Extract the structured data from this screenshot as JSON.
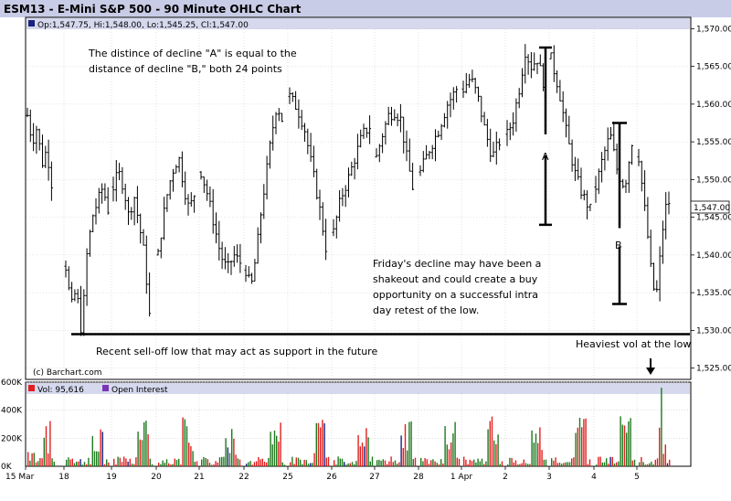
{
  "title": "ESM13 - E-Mini S&P 500 - 90 Minute OHLC Chart",
  "ohlc_legend": "Op:1,547.75, Hi:1,548.00, Lo:1,545.25, Cl:1,547.00",
  "current_price_label": "1,547.00",
  "copyright": "(c) Barchart.com",
  "vol_legend": "Vol: 95,616",
  "open_interest_legend": "Open Interest",
  "annotations": {
    "decline_text_line1": "The distince of decline \"A\" is equal to the",
    "decline_text_line2": "distance of decline \"B,\" both 24 points",
    "label_a": "A",
    "label_b": "B",
    "friday_line1": "Friday's decline may have been a",
    "friday_line2": "shakeout and could create a buy",
    "friday_line3": "opportunity on a successful intra",
    "friday_line4": "day retest of the low.",
    "support_text": "Recent sell-off low that may act as support in the future",
    "heaviest_vol": "Heaviest vol at the low"
  },
  "colors": {
    "header_bg": "#c9cce6",
    "legend_bg": "#d6d8ee",
    "bar_color": "#000000",
    "grid": "#cccccc",
    "vol_red": "#e02020",
    "vol_green": "#1e7a1e",
    "vol_blue": "#1a237e",
    "oi_purple": "#7a35b5"
  },
  "chart_data": {
    "type": "ohlc",
    "price_axis": {
      "ticks": [
        "1,525.00",
        "1,530.00",
        "1,535.00",
        "1,540.00",
        "1,545.00",
        "1,550.00",
        "1,555.00",
        "1,560.00",
        "1,565.00",
        "1,570.00"
      ],
      "range": [
        1523.5,
        1571.5
      ]
    },
    "volume_axis": {
      "ticks": [
        "0K",
        "200K",
        "400K",
        "600K"
      ],
      "range": [
        0,
        600000
      ]
    },
    "x_labels": [
      "15 Mar",
      "18",
      "19",
      "20",
      "21",
      "22",
      "25",
      "26",
      "27",
      "28",
      "1 Apr",
      "2",
      "3",
      "4",
      "5"
    ],
    "sessions": [
      {
        "date": "15 Mar",
        "path": [
          1558.5,
          1555,
          1557,
          1552,
          1554,
          1549.5
        ]
      },
      {
        "date": "18",
        "path": [
          1538.5,
          1533,
          1535.5,
          1529.5,
          1540,
          1545,
          1547,
          1549,
          1546
        ]
      },
      {
        "date": "19",
        "path": [
          1549,
          1551,
          1549,
          1545,
          1548,
          1544,
          1540,
          1532
        ]
      },
      {
        "date": "20",
        "path": [
          1540,
          1545,
          1549,
          1551.5,
          1553,
          1549,
          1546,
          1548
        ]
      },
      {
        "date": "21",
        "path": [
          1551,
          1548,
          1544,
          1540,
          1538,
          1540,
          1539
        ]
      },
      {
        "date": "22",
        "path": [
          1538,
          1535.5,
          1540,
          1546,
          1551,
          1556,
          1560,
          1558
        ]
      },
      {
        "date": "25",
        "path": [
          1561,
          1559.5,
          1557,
          1552,
          1547,
          1541
        ]
      },
      {
        "date": "26",
        "path": [
          1543,
          1547.5,
          1550,
          1553,
          1556,
          1557
        ]
      },
      {
        "date": "27",
        "path": [
          1553,
          1556,
          1558.5,
          1559,
          1558,
          1553,
          1549
        ]
      },
      {
        "date": "28",
        "path": [
          1551,
          1554,
          1556.5,
          1560,
          1562
        ]
      },
      {
        "date": "1 Apr",
        "path": [
          1562,
          1563.5,
          1561,
          1556.5,
          1553,
          1555
        ]
      },
      {
        "date": "2",
        "path": [
          1556,
          1558,
          1562,
          1567,
          1565,
          1566,
          1563
        ]
      },
      {
        "date": "3",
        "path": [
          1566,
          1562,
          1556,
          1551,
          1548,
          1546
        ]
      },
      {
        "date": "4",
        "path": [
          1549,
          1553,
          1556,
          1551,
          1549,
          1555
        ]
      },
      {
        "date": "5",
        "path": [
          1553,
          1548,
          1543,
          1537,
          1534,
          1540,
          1546,
          1547
        ]
      }
    ],
    "markers": {
      "decline_a": {
        "high": 1567.5,
        "low": 1544
      },
      "decline_b": {
        "high": 1557.5,
        "low": 1533.5
      },
      "support_level": 1529.5
    },
    "last_ohlc": {
      "open": 1547.75,
      "high": 1548.0,
      "low": 1545.25,
      "close": 1547.0
    },
    "last_volume": 95616
  }
}
